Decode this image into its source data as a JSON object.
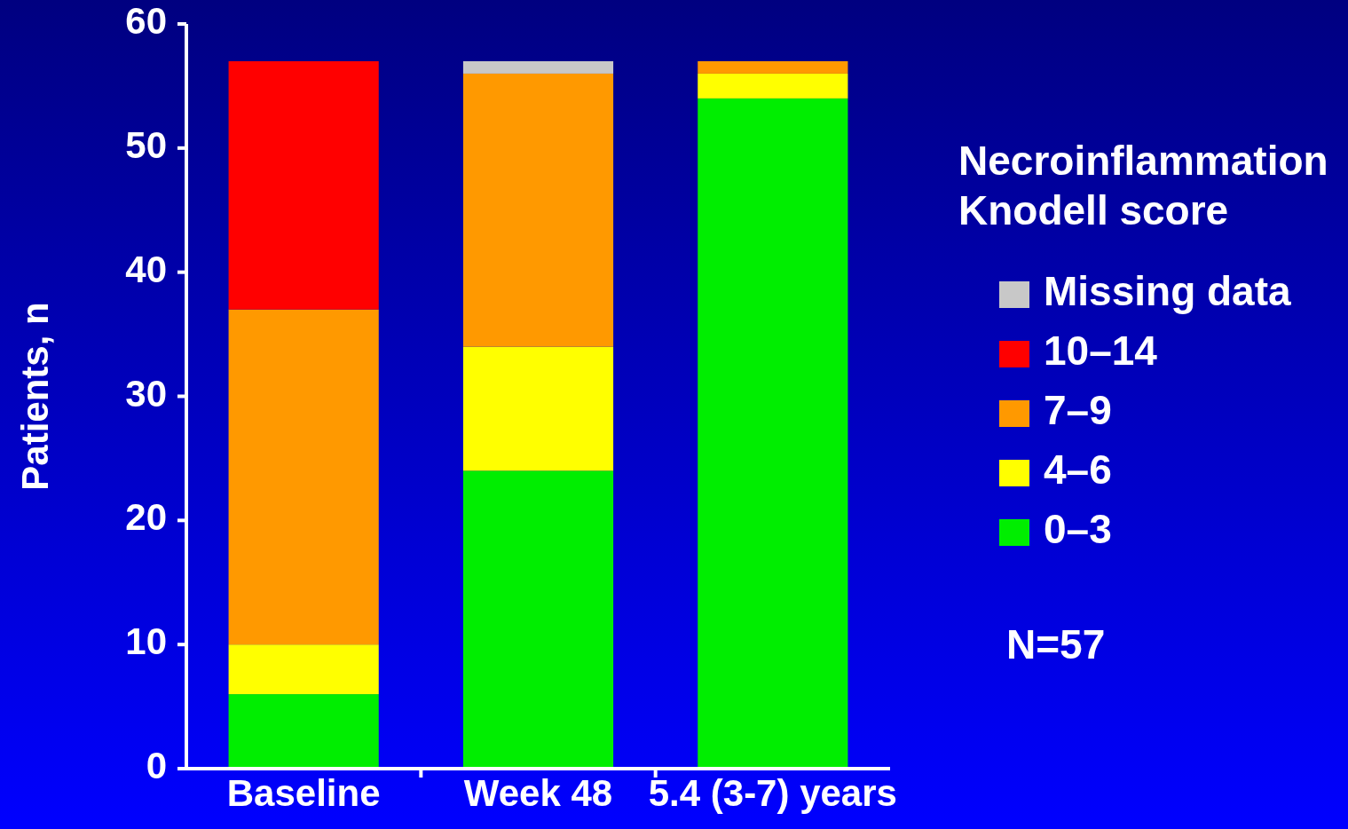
{
  "chart_data": {
    "type": "bar",
    "stacked": true,
    "categories": [
      "Baseline",
      "Week 48",
      "5.4 (3-7) years"
    ],
    "series": [
      {
        "name": "0–3",
        "color": "#00ee00",
        "values": [
          6,
          24,
          54
        ]
      },
      {
        "name": "4–6",
        "color": "#ffff00",
        "values": [
          4,
          10,
          2
        ]
      },
      {
        "name": "7–9",
        "color": "#ff9900",
        "values": [
          27,
          22,
          1
        ]
      },
      {
        "name": "10–14",
        "color": "#ff0000",
        "values": [
          20,
          0,
          0
        ]
      },
      {
        "name": "Missing data",
        "color": "#c8c8c8",
        "values": [
          0,
          1,
          0
        ]
      }
    ],
    "ylabel": "Patients, n",
    "ylim": [
      0,
      60
    ],
    "yticks": [
      0,
      10,
      20,
      30,
      40,
      50,
      60
    ],
    "legend": "right",
    "legend_title": "Necroinflammation Knodell score",
    "annotations": [
      "N=57"
    ]
  }
}
